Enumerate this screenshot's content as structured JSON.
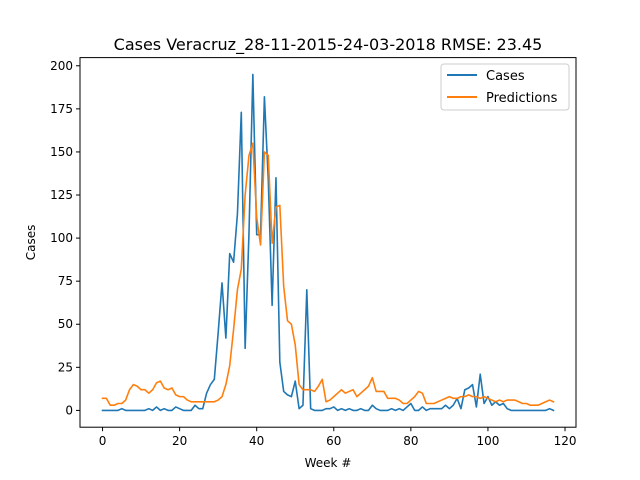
{
  "chart_data": {
    "type": "line",
    "title": "Cases Veracruz_28-11-2015-24-03-2018 RMSE: 23.45",
    "xlabel": "Week #",
    "ylabel": "Cases",
    "xlim": [
      -5.85,
      122.85
    ],
    "ylim": [
      -9.75,
      204.75
    ],
    "x_ticks": [
      0,
      20,
      40,
      60,
      80,
      100,
      120
    ],
    "y_ticks": [
      0,
      25,
      50,
      75,
      100,
      125,
      150,
      175,
      200
    ],
    "x_tick_labels": [
      "0",
      "20",
      "40",
      "60",
      "80",
      "100",
      "120"
    ],
    "y_tick_labels": [
      "0",
      "25",
      "50",
      "75",
      "100",
      "125",
      "150",
      "175",
      "200"
    ],
    "legend_position": "top-right",
    "grid": false,
    "x": [
      0,
      1,
      2,
      3,
      4,
      5,
      6,
      7,
      8,
      9,
      10,
      11,
      12,
      13,
      14,
      15,
      16,
      17,
      18,
      19,
      20,
      21,
      22,
      23,
      24,
      25,
      26,
      27,
      28,
      29,
      30,
      31,
      32,
      33,
      34,
      35,
      36,
      37,
      38,
      39,
      40,
      41,
      42,
      43,
      44,
      45,
      46,
      47,
      48,
      49,
      50,
      51,
      52,
      53,
      54,
      55,
      56,
      57,
      58,
      59,
      60,
      61,
      62,
      63,
      64,
      65,
      66,
      67,
      68,
      69,
      70,
      71,
      72,
      73,
      74,
      75,
      76,
      77,
      78,
      79,
      80,
      81,
      82,
      83,
      84,
      85,
      86,
      87,
      88,
      89,
      90,
      91,
      92,
      93,
      94,
      95,
      96,
      97,
      98,
      99,
      100,
      101,
      102,
      103,
      104,
      105,
      106,
      107,
      108,
      109,
      110,
      111,
      112,
      113,
      114,
      115,
      116,
      117
    ],
    "series": [
      {
        "name": "Cases",
        "color": "#1f77b4",
        "values": [
          0,
          0,
          0,
          0,
          0,
          1,
          0,
          0,
          0,
          0,
          0,
          0,
          1,
          0,
          2,
          0,
          1,
          0,
          0,
          2,
          1,
          0,
          0,
          0,
          3,
          1,
          1,
          10,
          15,
          18,
          45,
          74,
          42,
          91,
          86,
          114,
          173,
          36,
          103,
          195,
          102,
          102,
          182,
          134,
          61,
          135,
          28,
          11,
          9,
          8,
          17,
          1,
          3,
          70,
          1,
          0,
          0,
          0,
          1,
          1,
          2,
          0,
          1,
          0,
          1,
          0,
          0,
          1,
          0,
          0,
          3,
          1,
          0,
          0,
          0,
          1,
          0,
          1,
          0,
          2,
          4,
          0,
          0,
          2,
          0,
          1,
          1,
          1,
          1,
          3,
          1,
          3,
          7,
          1,
          12,
          13,
          15,
          2,
          21,
          4,
          8,
          3,
          5,
          3,
          4,
          1,
          0,
          0,
          0,
          0,
          0,
          0,
          0,
          0,
          0,
          0,
          1,
          0
        ]
      },
      {
        "name": "Predictions",
        "color": "#ff7f0e",
        "values": [
          7,
          7,
          3,
          3,
          4,
          4,
          6,
          12,
          15,
          14,
          12,
          12,
          10,
          12,
          16,
          17,
          13,
          12,
          13,
          9,
          8,
          8,
          6,
          5,
          5,
          5,
          5,
          5,
          5,
          5,
          6,
          8,
          15,
          26,
          47,
          70,
          82,
          125,
          148,
          155,
          112,
          96,
          150,
          148,
          97,
          118,
          119,
          72,
          52,
          50,
          38,
          15,
          12,
          12,
          12,
          11,
          14,
          18,
          5,
          6,
          8,
          10,
          12,
          10,
          11,
          12,
          8,
          10,
          12,
          14,
          19,
          11,
          11,
          11,
          7,
          7,
          7,
          6,
          4,
          4,
          6,
          8,
          11,
          10,
          4,
          4,
          4,
          5,
          6,
          7,
          8,
          7,
          7,
          8,
          8,
          9,
          8,
          8,
          7,
          8,
          7,
          6,
          5,
          6,
          5,
          6,
          6,
          6,
          5,
          4,
          4,
          3,
          3,
          3,
          4,
          5,
          6,
          5
        ]
      }
    ]
  }
}
